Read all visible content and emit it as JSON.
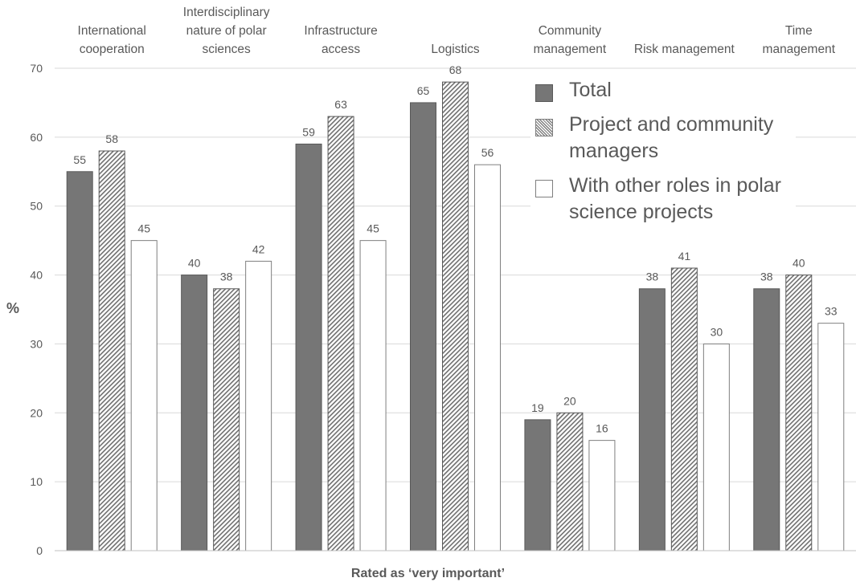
{
  "chart_data": {
    "type": "bar",
    "categories": [
      "International cooperation",
      "Interdisciplinary nature of polar sciences",
      "Infrastructure access",
      "Logistics",
      "Community management",
      "Risk management",
      "Time management"
    ],
    "category_labels": [
      "International\ncooperation",
      "Interdisciplinary\nnature of polar\nsciences",
      "Infrastructure\naccess",
      "Logistics",
      "Community\nmanagement",
      "Risk management",
      "Time\nmanagement"
    ],
    "series": [
      {
        "name": "Total",
        "values": [
          55,
          40,
          59,
          65,
          19,
          38,
          38
        ],
        "labels": [
          "55",
          "40",
          "59",
          "65",
          "19",
          "38",
          "38"
        ],
        "color": "#767676",
        "pattern": "solid"
      },
      {
        "name": "Project and community managers",
        "values": [
          58,
          38,
          63,
          68,
          20,
          41,
          40
        ],
        "labels": [
          "58",
          "38",
          "63",
          "68",
          "20",
          "41",
          "40"
        ],
        "color": "#7f7f7f",
        "pattern": "hatch"
      },
      {
        "name": "With other roles in polar science projects",
        "values": [
          45,
          42,
          45,
          56,
          16,
          30,
          33
        ],
        "labels": [
          "45",
          "42",
          "45",
          "56",
          "16",
          "30",
          "33"
        ],
        "color": "#ffffff",
        "pattern": "empty"
      }
    ],
    "ylim": [
      0,
      70
    ],
    "yticks": [
      0,
      10,
      20,
      30,
      40,
      50,
      60,
      70
    ],
    "ylabel": "%",
    "xlabel": "Rated as ‘very important’",
    "grid": true,
    "legend_position": "top-right"
  }
}
